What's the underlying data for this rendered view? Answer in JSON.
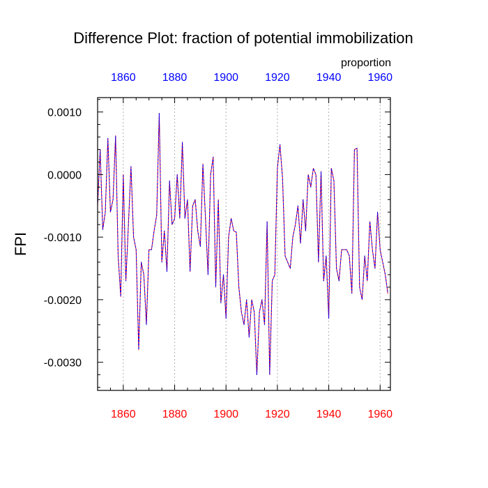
{
  "chart_data": {
    "type": "line",
    "title": "Difference Plot: fraction of potential immobilization",
    "units_label": "proportion",
    "ylabel": "FPI",
    "xlabel": "",
    "xlim": [
      1850,
      1964
    ],
    "ylim": [
      -0.00345,
      0.00123
    ],
    "x_ticks": [
      1860,
      1880,
      1900,
      1920,
      1940,
      1960
    ],
    "y_ticks": [
      0.001,
      0.0,
      -0.001,
      -0.002,
      -0.003
    ],
    "y_tick_labels": [
      "0.0010",
      "0.0000",
      "-0.0010",
      "-0.0020",
      "-0.0030"
    ],
    "bottom_tick_color": "#ff0000",
    "top_tick_color": "#0000ff",
    "grid": "vertical dashed gray at major x ticks",
    "series": [
      {
        "style": "dashed blue over red",
        "colors": [
          "#ff0000",
          "#0000ff"
        ],
        "x": [
          1850,
          1851,
          1852,
          1853,
          1854,
          1855,
          1856,
          1857,
          1858,
          1859,
          1860,
          1861,
          1862,
          1863,
          1864,
          1865,
          1866,
          1867,
          1868,
          1869,
          1870,
          1871,
          1872,
          1873,
          1874,
          1875,
          1876,
          1877,
          1878,
          1879,
          1880,
          1881,
          1882,
          1883,
          1884,
          1885,
          1886,
          1887,
          1888,
          1889,
          1890,
          1891,
          1892,
          1893,
          1894,
          1895,
          1896,
          1897,
          1898,
          1899,
          1900,
          1901,
          1902,
          1903,
          1904,
          1905,
          1906,
          1907,
          1908,
          1909,
          1910,
          1911,
          1912,
          1913,
          1914,
          1915,
          1916,
          1917,
          1918,
          1919,
          1920,
          1921,
          1922,
          1923,
          1924,
          1925,
          1926,
          1927,
          1928,
          1929,
          1930,
          1931,
          1932,
          1933,
          1934,
          1935,
          1936,
          1937,
          1938,
          1939,
          1940,
          1941,
          1942,
          1943,
          1944,
          1945,
          1946,
          1947,
          1948,
          1949,
          1950,
          1951,
          1952,
          1953,
          1954,
          1955,
          1956,
          1957,
          1958,
          1959,
          1960,
          1961,
          1962,
          1963
        ],
        "y": [
          -0.0005,
          0.0004,
          -0.00088,
          -0.0006,
          0.00058,
          -0.0006,
          -0.0004,
          0.00062,
          -0.0013,
          -0.00195,
          0.0,
          -0.0017,
          -0.0008,
          0.00013,
          -0.001,
          -0.0012,
          -0.0028,
          -0.0014,
          -0.0016,
          -0.0024,
          -0.0012,
          -0.0012,
          -0.0009,
          -0.00065,
          0.00098,
          -0.0014,
          -0.0009,
          -0.00155,
          -0.0001,
          -0.0008,
          -0.0007,
          0.0,
          -0.0007,
          0.00052,
          -0.0007,
          -0.0004,
          -0.00155,
          -0.0005,
          -0.0004,
          -0.0009,
          -0.00115,
          0.00017,
          -0.0007,
          -0.0016,
          0.0,
          0.00028,
          -0.0018,
          -0.0004,
          -0.00205,
          -0.0016,
          -0.0023,
          -0.001,
          -0.0007,
          -0.0009,
          -0.00092,
          -0.0018,
          -0.0022,
          -0.0024,
          -0.002,
          -0.0026,
          -0.002,
          -0.0022,
          -0.0032,
          -0.0022,
          -0.002,
          -0.0024,
          -0.00075,
          -0.0032,
          -0.0017,
          -0.0016,
          0.0001,
          0.00048,
          -5e-05,
          -0.0013,
          -0.0014,
          -0.0015,
          -0.001,
          -0.0008,
          -0.0005,
          -0.0011,
          -0.0004,
          -0.0009,
          0.0,
          -0.0002,
          0.0001,
          0.0,
          -0.0014,
          5e-05,
          -0.0017,
          -0.0013,
          -0.0023,
          0.0001,
          -0.0001,
          -0.0015,
          -0.0017,
          -0.0012,
          -0.0012,
          -0.0012,
          -0.0013,
          -0.0019,
          0.0004,
          0.00042,
          -0.0018,
          -0.002,
          -0.0013,
          -0.0017,
          -0.00075,
          -0.0012,
          -0.0015,
          -0.0006,
          -0.0012,
          -0.0014,
          -0.0016,
          -0.0019
        ]
      }
    ]
  }
}
